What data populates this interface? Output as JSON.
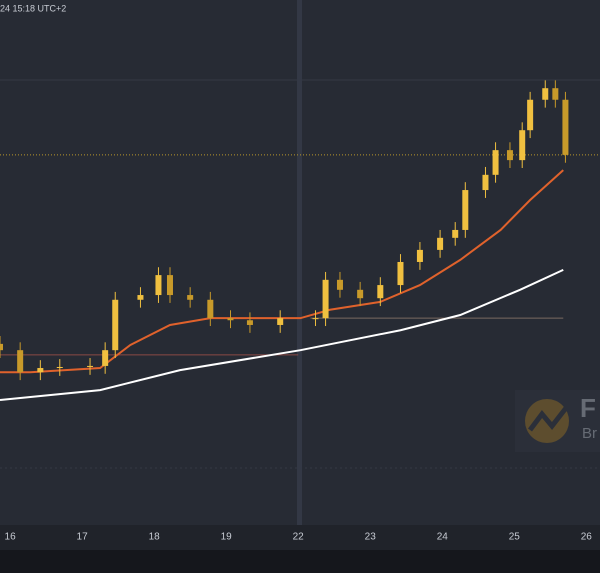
{
  "chart_data": {
    "type": "candlestick",
    "timestamp": "24 15:18 UTC+2",
    "watermark": [
      "F",
      "Br"
    ],
    "xlim": [
      -0.14,
      8.19
    ],
    "xticks": [
      {
        "value": 0,
        "label": "16"
      },
      {
        "value": 1,
        "label": "17"
      },
      {
        "value": 2,
        "label": "18"
      },
      {
        "value": 3,
        "label": "19"
      },
      {
        "value": 4,
        "label": "22"
      },
      {
        "value": 5,
        "label": "23"
      },
      {
        "value": 6,
        "label": "24"
      },
      {
        "value": 7,
        "label": "25"
      },
      {
        "value": 8,
        "label": "26"
      }
    ],
    "ylim": [
      0,
      100
    ],
    "up_color": "#f0c040",
    "down_color": "#c89a2a",
    "x": [
      -0.14,
      0.14,
      0.42,
      0.69,
      1.11,
      1.32,
      1.46,
      1.81,
      2.06,
      2.22,
      2.5,
      2.78,
      3.06,
      3.33,
      3.75,
      4.24,
      4.38,
      4.58,
      4.86,
      5.14,
      5.42,
      5.69,
      5.97,
      6.18,
      6.32,
      6.6,
      6.74,
      6.94,
      7.11,
      7.22,
      7.43,
      7.57,
      7.71
    ],
    "open": [
      34.5,
      33.3,
      29.1,
      29.9,
      30.1,
      30.3,
      33.3,
      42.9,
      43.8,
      47.6,
      43.8,
      42.9,
      39.4,
      39.0,
      38.1,
      39.4,
      39.4,
      46.7,
      44.8,
      43.2,
      45.7,
      50.1,
      52.4,
      54.7,
      56.2,
      63.8,
      66.7,
      71.4,
      69.5,
      75.2,
      81.0,
      83.2,
      81.0
    ],
    "high": [
      36.0,
      34.8,
      31.4,
      31.6,
      31.8,
      34.8,
      44.4,
      45.3,
      49.1,
      49.1,
      45.3,
      44.4,
      40.9,
      40.5,
      40.9,
      40.9,
      48.2,
      48.2,
      46.3,
      47.2,
      51.6,
      53.9,
      56.2,
      57.7,
      65.3,
      68.2,
      72.9,
      72.9,
      76.7,
      82.5,
      84.7,
      84.7,
      82.5
    ],
    "low": [
      31.8,
      27.6,
      27.6,
      28.4,
      28.6,
      28.8,
      31.8,
      41.4,
      42.3,
      42.3,
      41.4,
      37.9,
      37.5,
      36.6,
      36.6,
      37.9,
      37.9,
      43.3,
      41.7,
      41.7,
      44.2,
      48.6,
      50.9,
      53.2,
      54.7,
      62.3,
      65.2,
      68.0,
      68.0,
      73.7,
      79.5,
      79.5,
      69.0
    ],
    "close": [
      33.3,
      29.1,
      29.9,
      30.1,
      30.3,
      33.3,
      42.9,
      43.8,
      47.6,
      43.8,
      42.9,
      39.4,
      39.0,
      38.1,
      39.4,
      39.4,
      46.7,
      44.8,
      43.2,
      45.7,
      50.1,
      52.4,
      54.7,
      56.2,
      63.8,
      66.7,
      71.4,
      69.5,
      75.2,
      81.0,
      83.2,
      81.0,
      70.5
    ],
    "lines": [
      {
        "color": "#e0622c",
        "x": [
          -0.14,
          0.28,
          1.25,
          1.67,
          2.22,
          2.78,
          4.03,
          4.44,
          5.14,
          5.69,
          6.25,
          6.81,
          7.22,
          7.68
        ],
        "values": [
          29.1,
          29.1,
          29.9,
          34.3,
          38.1,
          39.4,
          39.4,
          41.0,
          42.5,
          45.7,
          50.5,
          56.2,
          61.9,
          67.6
        ]
      },
      {
        "color": "#ffffff",
        "x": [
          -0.14,
          1.25,
          2.36,
          4.03,
          5.42,
          6.25,
          7.08,
          7.68
        ],
        "values": [
          23.8,
          25.7,
          29.5,
          33.3,
          37.1,
          40.0,
          44.8,
          48.6
        ]
      }
    ],
    "levels": [
      {
        "value": 70.5,
        "color": "#b8962a",
        "from": -0.14,
        "to": 8.19
      },
      {
        "value": 32.4,
        "color": "#8a4a44",
        "from": -0.14,
        "to": 4.0
      },
      {
        "value": 39.4,
        "color": "#7a6a60",
        "from": 4.17,
        "to": 7.68
      }
    ]
  }
}
